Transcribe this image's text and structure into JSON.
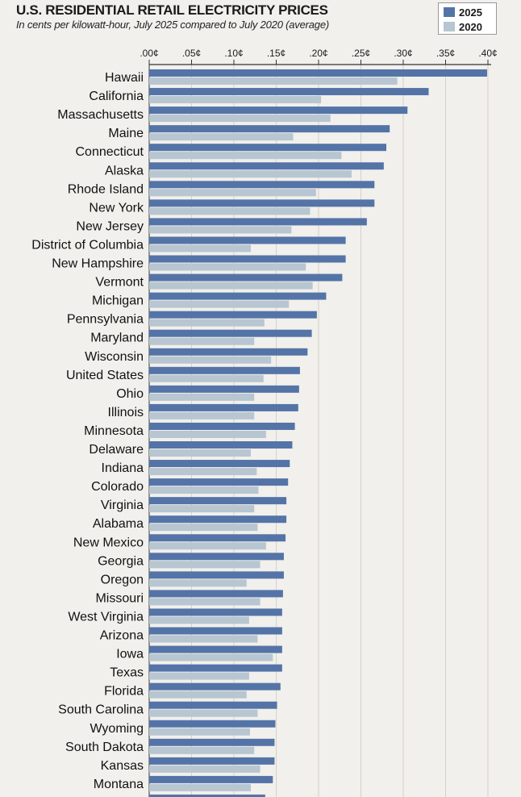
{
  "chart_data": {
    "type": "bar",
    "orientation": "horizontal",
    "title": "U.S. RESIDENTIAL RETAIL ELECTRICITY PRICES",
    "subtitle": "In cents per kilowatt-hour, July 2025 compared to July 2020 (average)",
    "xlim": [
      0,
      0.4
    ],
    "ticks": [
      0,
      0.05,
      0.1,
      0.15,
      0.2,
      0.25,
      0.3,
      0.35,
      0.4
    ],
    "tick_labels": [
      ".00¢",
      ".05¢",
      ".10¢",
      ".15¢",
      ".20¢",
      ".25¢",
      ".30¢",
      ".35¢",
      ".40¢"
    ],
    "legend_position": "top-right",
    "categories": [
      "Hawaii",
      "California",
      "Massachusetts",
      "Maine",
      "Connecticut",
      "Alaska",
      "Rhode Island",
      "New York",
      "New Jersey",
      "District of Columbia",
      "New Hampshire",
      "Vermont",
      "Michigan",
      "Pennsylvania",
      "Maryland",
      "Wisconsin",
      "United States",
      "Ohio",
      "Illinois",
      "Minnesota",
      "Delaware",
      "Indiana",
      "Colorado",
      "Virginia",
      "Alabama",
      "New Mexico",
      "Georgia",
      "Oregon",
      "Missouri",
      "West Virginia",
      "Arizona",
      "Iowa",
      "Texas",
      "Florida",
      "South Carolina",
      "Wyoming",
      "South Dakota",
      "Kansas",
      "Montana",
      ""
    ],
    "series": [
      {
        "name": "2025",
        "color": "#5474a8",
        "values": [
          0.399,
          0.33,
          0.305,
          0.284,
          0.28,
          0.277,
          0.266,
          0.266,
          0.257,
          0.232,
          0.232,
          0.228,
          0.209,
          0.198,
          0.192,
          0.187,
          0.178,
          0.177,
          0.176,
          0.172,
          0.169,
          0.166,
          0.164,
          0.162,
          0.162,
          0.161,
          0.159,
          0.159,
          0.158,
          0.157,
          0.157,
          0.157,
          0.157,
          0.155,
          0.151,
          0.149,
          0.148,
          0.148,
          0.146,
          0.0
        ]
      },
      {
        "name": "2020",
        "color": "#b7c6d1",
        "values": [
          0.293,
          0.203,
          0.214,
          0.17,
          0.227,
          0.239,
          0.197,
          0.19,
          0.168,
          0.12,
          0.185,
          0.193,
          0.165,
          0.136,
          0.124,
          0.144,
          0.135,
          0.124,
          0.124,
          0.138,
          0.12,
          0.127,
          0.129,
          0.124,
          0.128,
          0.138,
          0.131,
          0.115,
          0.131,
          0.118,
          0.128,
          0.146,
          0.118,
          0.115,
          0.128,
          0.119,
          0.124,
          0.131,
          0.12,
          0.0
        ]
      }
    ],
    "partial_last_bar_value": 0.137
  }
}
